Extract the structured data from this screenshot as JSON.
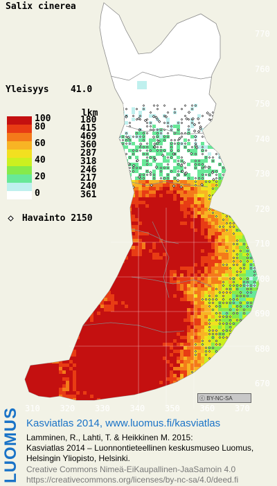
{
  "map": {
    "species": "Salix cinerea",
    "frequency_label": "Yleisyys",
    "frequency_value": "41.0",
    "legend": {
      "count_header": "lkm",
      "classes": [
        {
          "label": "100",
          "count": "180",
          "color": "#c41010"
        },
        {
          "label": "80",
          "count": "415",
          "color": "#e83c14"
        },
        {
          "label": "",
          "count": "469",
          "color": "#f47a1a"
        },
        {
          "label": "60",
          "count": "360",
          "color": "#f8b424"
        },
        {
          "label": "",
          "count": "287",
          "color": "#f2e020"
        },
        {
          "label": "40",
          "count": "318",
          "color": "#ccf020"
        },
        {
          "label": "",
          "count": "246",
          "color": "#86ea4a"
        },
        {
          "label": "20",
          "count": "217",
          "color": "#68e898"
        },
        {
          "label": "",
          "count": "240",
          "color": "#bff0ee"
        },
        {
          "label": "0",
          "count": "361",
          "color": "#ffffff"
        }
      ],
      "observation_label": "Havainto",
      "observation_count": "2150"
    },
    "y_ticks": [
      "770",
      "760",
      "750",
      "740",
      "730",
      "720",
      "710",
      "700",
      "690",
      "680",
      "670"
    ],
    "x_ticks": [
      "310",
      "320",
      "330",
      "340",
      "350",
      "360",
      "370"
    ],
    "license_badge": "BY-NC-SA"
  },
  "footer": {
    "brand": "LUOMUS",
    "site": "Kasviatlas 2014, www.luomus.fi/kasviatlas",
    "citation": [
      "Lamminen, R., Lahti, T. & Heikkinen M. 2015:",
      "Kasviatlas 2014 – Luonnontieteellinen keskusmuseo Luomus,",
      "Helsingin Yliopisto, Helsinki."
    ],
    "license": [
      "Creative Commons Nimeä-EiKaupallinen-JaaSamoin 4.0",
      "https://creativecommons.org/licenses/by-nc-sa/4.0/deed.fi"
    ],
    "accent_color": "#1a73c7"
  }
}
